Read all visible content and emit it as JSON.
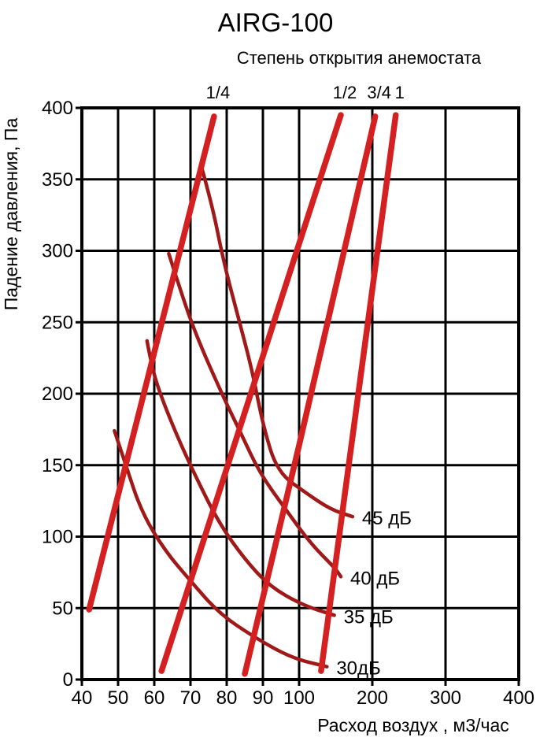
{
  "page": {
    "title": "AIRG-100",
    "subtitle": "Степень открытия анемостата",
    "x_axis_label": "Расход воздух , м3/час",
    "y_axis_label": "Падение давления, Па"
  },
  "chart_data": {
    "type": "line",
    "title": "AIRG-100",
    "subtitle": "Степень открытия анемостата",
    "xlabel": "Расход воздух , м3/час",
    "ylabel": "Падение давления, Па",
    "xlim": [
      40,
      400
    ],
    "ylim": [
      0,
      400
    ],
    "x_ticks": [
      40,
      50,
      60,
      70,
      80,
      90,
      100,
      200,
      300,
      400
    ],
    "y_ticks": [
      0,
      50,
      100,
      150,
      200,
      250,
      300,
      350,
      400
    ],
    "x_scale": "pseudo-log: ticks 40-100 equally spaced, ticks 100-400 equally spaced",
    "y_scale": "linear",
    "grid": true,
    "legend_position": "labels at curve ends",
    "colors": {
      "opening_lines": "#d42020",
      "noise_curves": "#a01818",
      "grid": "#000000",
      "text": "#000000",
      "background": "#ffffff"
    },
    "opening_series": [
      {
        "name": "1-4",
        "label": "1/4",
        "points": [
          [
            42,
            49
          ],
          [
            76.5,
            394
          ]
        ]
      },
      {
        "name": "1-2",
        "label": "1/2",
        "points": [
          [
            62,
            6
          ],
          [
            100,
            305
          ],
          [
            157,
            395
          ]
        ]
      },
      {
        "name": "3-4",
        "label": "3/4",
        "points": [
          [
            85,
            4
          ],
          [
            100,
            164
          ],
          [
            204,
            394
          ]
        ]
      },
      {
        "name": "1",
        "label": "1",
        "points": [
          [
            130,
            6
          ],
          [
            232,
            395
          ]
        ]
      }
    ],
    "noise_series": [
      {
        "name": "30db",
        "label": "30дБ",
        "points": [
          [
            49,
            174
          ],
          [
            52,
            151
          ],
          [
            56.5,
            117
          ],
          [
            63,
            90
          ],
          [
            70,
            69
          ],
          [
            78,
            46
          ],
          [
            88,
            29
          ],
          [
            98,
            15
          ],
          [
            138,
            9
          ]
        ]
      },
      {
        "name": "35db",
        "label": "35 дБ",
        "points": [
          [
            58,
            237
          ],
          [
            59,
            223
          ],
          [
            61,
            204
          ],
          [
            66,
            172
          ],
          [
            72,
            139
          ],
          [
            78,
            109
          ],
          [
            85,
            84
          ],
          [
            92,
            65
          ],
          [
            105,
            52
          ],
          [
            148,
            45
          ]
        ]
      },
      {
        "name": "40db",
        "label": "40 дБ",
        "points": [
          [
            64,
            298
          ],
          [
            66,
            282
          ],
          [
            71,
            244
          ],
          [
            79,
            198
          ],
          [
            84,
            172
          ],
          [
            89,
            145
          ],
          [
            96,
            120
          ],
          [
            116,
            95
          ],
          [
            149,
            78
          ],
          [
            157,
            72
          ]
        ]
      },
      {
        "name": "45db",
        "label": "45 дБ",
        "points": [
          [
            73,
            359
          ],
          [
            76,
            332
          ],
          [
            79,
            294
          ],
          [
            83,
            255
          ],
          [
            87,
            217
          ],
          [
            90,
            178
          ],
          [
            94,
            145
          ],
          [
            111,
            130
          ],
          [
            143,
            119
          ],
          [
            173,
            114
          ]
        ]
      }
    ]
  }
}
